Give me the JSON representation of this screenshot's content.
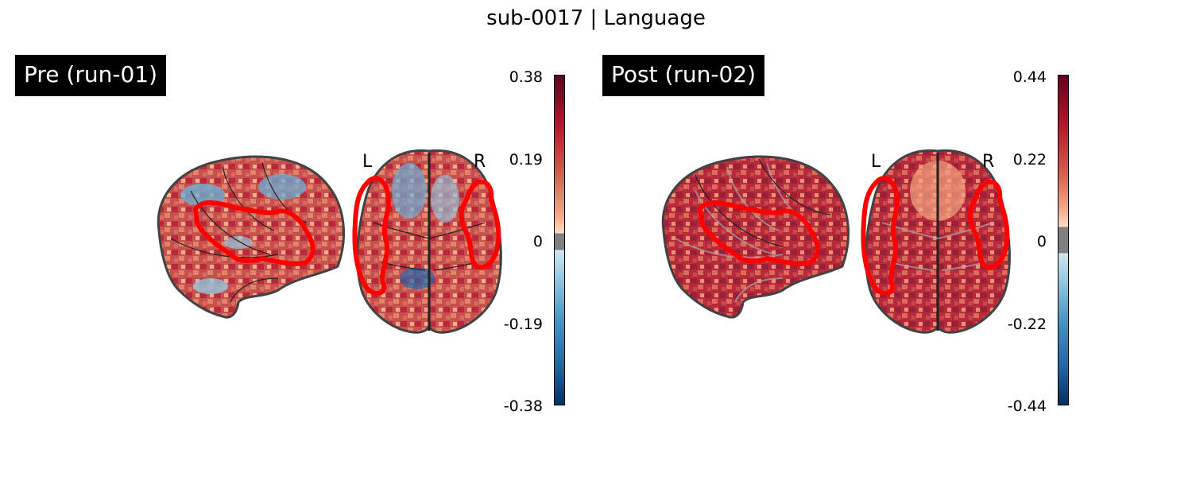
{
  "figure": {
    "title": "sub-0017 | Language"
  },
  "panels": [
    {
      "label": "Pre (run-01)",
      "hemisphere_left": "L",
      "hemisphere_right": "R",
      "colorbar": {
        "ticks": [
          "0.38",
          "0.19",
          "0",
          "-0.19",
          "-0.38"
        ],
        "vmax": 0.38,
        "vmin": -0.38
      }
    },
    {
      "label": "Post (run-02)",
      "hemisphere_left": "L",
      "hemisphere_right": "R",
      "colorbar": {
        "ticks": [
          "0.44",
          "0.22",
          "0",
          "-0.22",
          "-0.44"
        ],
        "vmax": 0.44,
        "vmin": -0.44
      }
    }
  ],
  "colors": {
    "contour": "#ff0000",
    "colormap_high": "#67001f",
    "colormap_mid": "#f7f7f7",
    "colormap_low": "#053061",
    "threshold_band": "#808080"
  }
}
